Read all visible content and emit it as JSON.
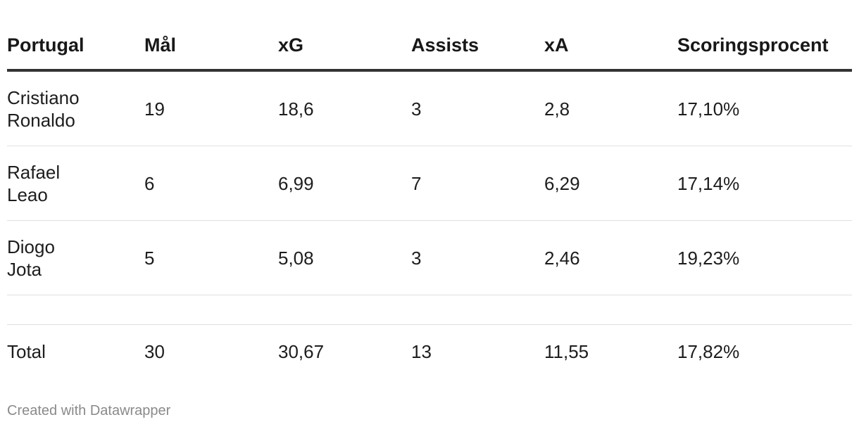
{
  "chart_data": {
    "type": "table",
    "columns": [
      "Portugal",
      "Mål",
      "xG",
      "Assists",
      "xA",
      "Scoringsprocent"
    ],
    "rows": [
      [
        "Cristiano\nRonaldo",
        "19",
        "18,6",
        "3",
        "2,8",
        "17,10%"
      ],
      [
        "Rafael\nLeao",
        "6",
        "6,99",
        "7",
        "6,29",
        "17,14%"
      ],
      [
        "Diogo\nJota",
        "5",
        "5,08",
        "3",
        "2,46",
        "19,23%"
      ]
    ],
    "total": [
      "Total",
      "30",
      "30,67",
      "13",
      "11,55",
      "17,82%"
    ]
  },
  "footer": {
    "credit": "Created with Datawrapper"
  },
  "colors": {
    "text": "#1d1d1d",
    "header_rule": "#333333",
    "row_rule": "#e0e0e0",
    "footer_text": "#8a8a8a"
  }
}
